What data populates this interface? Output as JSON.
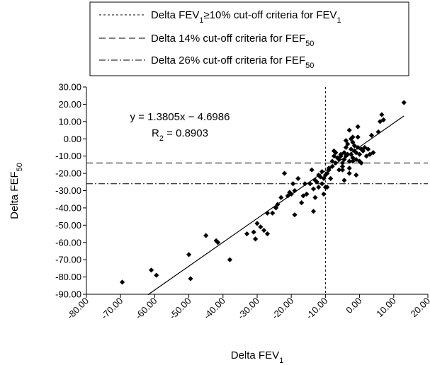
{
  "chart_data": {
    "type": "scatter",
    "xlabel_main": "Delta FEV",
    "xlabel_sub": "1",
    "ylabel_main": "Delta FEF",
    "ylabel_sub": "50",
    "xlim": [
      -80,
      20
    ],
    "ylim": [
      -90,
      30
    ],
    "x_ticks": [
      "-80.00",
      "-70.00",
      "-60.00",
      "-50.00",
      "-40.00",
      "-30.00",
      "-20.00",
      "-10.00",
      "0.00",
      "10.00",
      "20.00"
    ],
    "y_ticks": [
      "30.00",
      "20.00",
      "10.00",
      "0.00",
      "-10.00",
      "-20.00",
      "-30.00",
      "-40.00",
      "-50.00",
      "-60.00",
      "-70.00",
      "-80.00",
      "-90.00"
    ],
    "legend": {
      "placement": "top-right",
      "entries": [
        {
          "style": "dotted",
          "text_main": "Delta FEV",
          "sub1": "1",
          "text_mid": "≥10% cut-off criteria for FEV",
          "sub2": "1"
        },
        {
          "style": "dashed",
          "text_main": "Delta 14% cut-off criteria for FEF",
          "sub1": "50"
        },
        {
          "style": "dashdot",
          "text_main": "Delta 26% cut-off criteria for FEF",
          "sub1": "50"
        }
      ]
    },
    "annotation": {
      "equation": "y = 1.3805x − 4.6986",
      "r2_main": "R",
      "r2_sub": "2",
      "r2_value": " = 0.8903"
    },
    "regression": {
      "slope": 1.3805,
      "intercept": -4.6986,
      "x_range": [
        -62,
        13
      ]
    },
    "reference_lines": {
      "vertical_x": -10,
      "horizontal_dashed_y": -14,
      "horizontal_dashdot_y": -26
    },
    "points": [
      [
        -69.5,
        -83
      ],
      [
        -61,
        -76
      ],
      [
        -59.5,
        -79
      ],
      [
        -50,
        -67
      ],
      [
        -49.5,
        -81
      ],
      [
        -45,
        -56
      ],
      [
        -42,
        -59
      ],
      [
        -41.5,
        -60
      ],
      [
        -38,
        -70
      ],
      [
        -33,
        -55
      ],
      [
        -31,
        -54
      ],
      [
        -30.5,
        -58
      ],
      [
        -30,
        -49
      ],
      [
        -29,
        -51
      ],
      [
        -28,
        -53
      ],
      [
        -27,
        -55
      ],
      [
        -27,
        -43
      ],
      [
        -25.5,
        -43
      ],
      [
        -24.5,
        -40
      ],
      [
        -24,
        -38
      ],
      [
        -23,
        -34
      ],
      [
        -22,
        -20
      ],
      [
        -21,
        -33
      ],
      [
        -20.5,
        -31
      ],
      [
        -20,
        -32
      ],
      [
        -19.5,
        -26
      ],
      [
        -19,
        -30
      ],
      [
        -18,
        -23
      ],
      [
        -17,
        -37
      ],
      [
        -16.5,
        -33
      ],
      [
        -16,
        -26
      ],
      [
        -15.5,
        -32
      ],
      [
        -14.5,
        -26
      ],
      [
        -14,
        -18
      ],
      [
        -13.5,
        -29
      ],
      [
        -13.5,
        -42
      ],
      [
        -13,
        -24
      ],
      [
        -12.5,
        -25
      ],
      [
        -12,
        -21
      ],
      [
        -12,
        -28
      ],
      [
        -11.5,
        -22
      ],
      [
        -11,
        -19
      ],
      [
        -11,
        -26
      ],
      [
        -10.5,
        -23
      ],
      [
        -10.5,
        -32
      ],
      [
        -10,
        -21
      ],
      [
        -9.5,
        -20
      ],
      [
        -9,
        -17
      ],
      [
        -9.5,
        -28
      ],
      [
        -8.5,
        -23
      ],
      [
        -8,
        -13
      ],
      [
        -8,
        -16
      ],
      [
        -7.5,
        -10
      ],
      [
        -7,
        -8
      ],
      [
        -7,
        -14
      ],
      [
        -6.5,
        -11
      ],
      [
        -6,
        -12
      ],
      [
        -6,
        -18
      ],
      [
        -5.5,
        -10
      ],
      [
        -5.5,
        -9
      ],
      [
        -5,
        -14
      ],
      [
        -5,
        -16
      ],
      [
        -4.5,
        -8
      ],
      [
        -4.5,
        -12
      ],
      [
        -4,
        -1
      ],
      [
        -4,
        -5
      ],
      [
        -4,
        -10
      ],
      [
        -3.5,
        -3
      ],
      [
        -3.5,
        -9
      ],
      [
        -3,
        -13
      ],
      [
        -3,
        -17
      ],
      [
        -3,
        -20
      ],
      [
        -2.5,
        -6
      ],
      [
        -2.5,
        0
      ],
      [
        -2.5,
        -9
      ],
      [
        -2,
        -2
      ],
      [
        -2,
        -11
      ],
      [
        -2,
        -13
      ],
      [
        -1.5,
        -4
      ],
      [
        -1.5,
        -7
      ],
      [
        -1,
        -8
      ],
      [
        -1,
        -12
      ],
      [
        -1,
        -21
      ],
      [
        -0.5,
        -5
      ],
      [
        -0.5,
        1
      ],
      [
        0,
        -9
      ],
      [
        0,
        -13
      ],
      [
        0.5,
        -6
      ],
      [
        0.5,
        -14
      ],
      [
        1,
        -7
      ],
      [
        1.5,
        -5
      ],
      [
        2,
        -10
      ],
      [
        2.5,
        -6
      ],
      [
        3,
        -9
      ],
      [
        -3,
        5
      ],
      [
        -2,
        1
      ],
      [
        -0.5,
        7
      ],
      [
        -4.5,
        -24
      ],
      [
        -5,
        -18
      ],
      [
        -7.5,
        -7
      ],
      [
        -9,
        -18
      ],
      [
        -10,
        -28
      ],
      [
        -13,
        -34
      ],
      [
        -19,
        -44
      ],
      [
        6,
        10
      ],
      [
        6.5,
        14
      ],
      [
        7,
        11
      ],
      [
        13,
        21
      ],
      [
        4,
        -8
      ],
      [
        5.5,
        4
      ],
      [
        3.5,
        2
      ]
    ]
  }
}
